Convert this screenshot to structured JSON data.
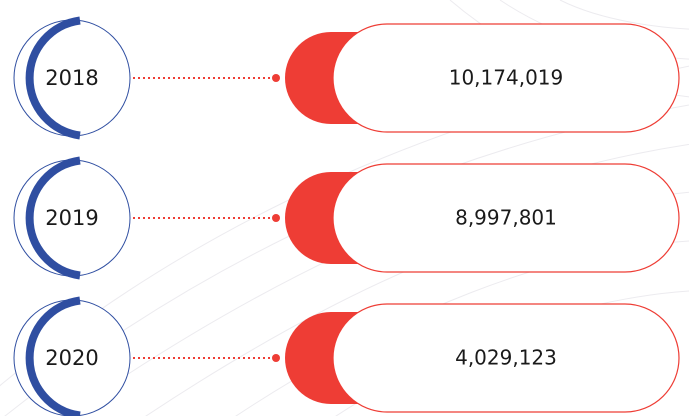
{
  "rows": [
    {
      "year": "2018",
      "value": "10,174,019"
    },
    {
      "year": "2019",
      "value": "8,997,801"
    },
    {
      "year": "2020",
      "value": "4,029,123"
    }
  ]
}
